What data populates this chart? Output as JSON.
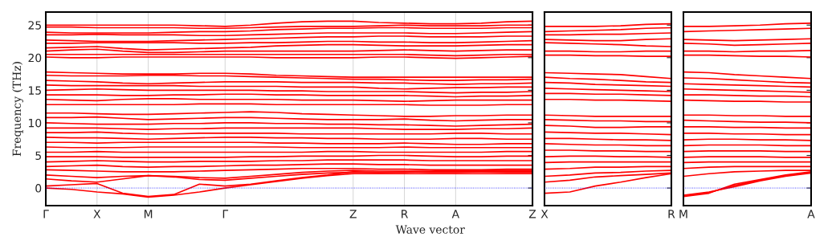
{
  "chart_data": [
    {
      "type": "line",
      "xlabel": "Wave vector",
      "ylabel": "Frequency (THz)",
      "categories": [
        "Γ",
        null,
        "X",
        null,
        "M",
        null,
        null,
        "Γ",
        null,
        null,
        null,
        null,
        "Z",
        null,
        "R",
        null,
        "A",
        null,
        null,
        "Z"
      ],
      "ylim": [
        -2.7,
        27
      ],
      "yticks": [
        0,
        5,
        10,
        15,
        20,
        25
      ],
      "grid": "x",
      "ref_lines": [
        {
          "axis": "y",
          "value": 0,
          "color": "#0000ff",
          "line_style": "dotted"
        }
      ],
      "series": [
        {
          "color": "#ff0000",
          "values": [
            25,
            25,
            25,
            25,
            25,
            25,
            24.9,
            24.8,
            25,
            25.3,
            25.5,
            25.6,
            25.6,
            25.4,
            25.3,
            25.2,
            25.2,
            25.3,
            25.5,
            25.6
          ]
        },
        {
          "color": "#ff0000",
          "values": [
            24.7,
            24.7,
            24.6,
            24.6,
            24.6,
            24.6,
            24.5,
            24.5,
            24.6,
            24.7,
            24.8,
            24.8,
            24.8,
            24.9,
            25,
            24.9,
            24.9,
            24.9,
            25,
            25
          ]
        },
        {
          "color": "#ff0000",
          "values": [
            23.9,
            23.8,
            23.8,
            23.8,
            23.8,
            23.9,
            24,
            24,
            24.1,
            24.3,
            24.4,
            24.5,
            24.5,
            24.6,
            24.6,
            24.5,
            24.5,
            24.5,
            24.6,
            24.6
          ]
        },
        {
          "color": "#ff0000",
          "values": [
            23.5,
            23.5,
            23.6,
            23.5,
            23.5,
            23.5,
            23.4,
            23.4,
            23.5,
            23.6,
            23.7,
            23.8,
            23.8,
            23.8,
            23.8,
            23.7,
            23.7,
            23.8,
            23.9,
            24
          ]
        },
        {
          "color": "#ff0000",
          "values": [
            22.7,
            22.6,
            22.5,
            22.5,
            22.5,
            22.6,
            22.7,
            22.8,
            22.9,
            23,
            23.1,
            23.2,
            23.2,
            23.3,
            23.3,
            23.2,
            23.2,
            23.2,
            23.3,
            23.3
          ]
        },
        {
          "color": "#ff0000",
          "values": [
            22.2,
            22.2,
            22.3,
            22.3,
            22.3,
            22.3,
            22.2,
            22.2,
            22.3,
            22.3,
            22.4,
            22.5,
            22.5,
            22.4,
            22.4,
            22.3,
            22.3,
            22.4,
            22.5,
            22.6
          ]
        },
        {
          "color": "#ff0000",
          "values": [
            21.5,
            21.6,
            21.7,
            21.4,
            21.2,
            21.3,
            21.4,
            21.5,
            21.6,
            21.8,
            21.9,
            22,
            22,
            21.9,
            21.8,
            21.8,
            21.8,
            21.9,
            22,
            22
          ]
        },
        {
          "color": "#ff0000",
          "values": [
            21,
            21.2,
            21.3,
            21,
            20.8,
            20.8,
            20.9,
            21,
            21,
            21,
            21,
            21,
            21,
            21.1,
            21.2,
            21.1,
            21,
            21.1,
            21.2,
            21.2
          ]
        },
        {
          "color": "#ff0000",
          "values": [
            20.5,
            20.5,
            20.5,
            20.5,
            20.5,
            20.5,
            20.5,
            20.5,
            20.5,
            20.5,
            20.5,
            20.5,
            20.5,
            20.5,
            20.5,
            20.4,
            20.3,
            20.4,
            20.5,
            20.5
          ]
        },
        {
          "color": "#ff0000",
          "values": [
            20.1,
            20,
            20,
            20.1,
            20.1,
            20.1,
            20.1,
            20.1,
            20.1,
            20,
            20,
            20,
            20,
            20.1,
            20.1,
            20,
            19.9,
            20,
            20.1,
            20.2
          ]
        },
        {
          "color": "#ff0000",
          "values": [
            17.8,
            17.7,
            17.6,
            17.5,
            17.5,
            17.5,
            17.6,
            17.6,
            17.5,
            17.3,
            17.2,
            17.1,
            17,
            17,
            17,
            17,
            17,
            17,
            17,
            17
          ]
        },
        {
          "color": "#ff0000",
          "values": [
            17.3,
            17.2,
            17.2,
            17.2,
            17.3,
            17.3,
            17.2,
            17.2,
            17.1,
            17,
            16.9,
            16.8,
            16.7,
            16.7,
            16.6,
            16.5,
            16.5,
            16.6,
            16.6,
            16.7
          ]
        },
        {
          "color": "#ff0000",
          "values": [
            16.5,
            16.4,
            16.3,
            16.1,
            16,
            16.1,
            16.2,
            16.3,
            16.3,
            16.3,
            16.2,
            16.2,
            16.2,
            16.1,
            16.1,
            16,
            15.9,
            16,
            16,
            16.1
          ]
        },
        {
          "color": "#ff0000",
          "values": [
            15.8,
            15.7,
            15.7,
            15.7,
            15.7,
            15.7,
            15.6,
            15.6,
            15.6,
            15.6,
            15.5,
            15.5,
            15.5,
            15.3,
            15.2,
            15.3,
            15.4,
            15.4,
            15.5,
            15.5
          ]
        },
        {
          "color": "#ff0000",
          "values": [
            15,
            15.1,
            15.2,
            15.1,
            15,
            15,
            15,
            15,
            15,
            14.9,
            14.9,
            14.8,
            14.8,
            14.8,
            14.8,
            14.7,
            14.6,
            14.7,
            14.7,
            14.8
          ]
        },
        {
          "color": "#ff0000",
          "values": [
            14.3,
            14.3,
            14.3,
            14.2,
            14.2,
            14.3,
            14.3,
            14.4,
            14.4,
            14.3,
            14.3,
            14.2,
            14.2,
            14.2,
            14.2,
            14.1,
            14,
            14.1,
            14.1,
            14.2
          ]
        },
        {
          "color": "#ff0000",
          "values": [
            13.6,
            13.5,
            13.4,
            13.6,
            13.7,
            13.7,
            13.6,
            13.6,
            13.6,
            13.6,
            13.5,
            13.5,
            13.5,
            13.4,
            13.3,
            13.4,
            13.5,
            13.5,
            13.5,
            13.5
          ]
        },
        {
          "color": "#ff0000",
          "values": [
            12.8,
            12.8,
            12.8,
            12.8,
            12.8,
            12.8,
            12.9,
            12.9,
            12.9,
            12.8,
            12.8,
            12.8,
            12.8,
            12.8,
            12.8,
            12.7,
            12.7,
            12.7,
            12.8,
            12.8
          ]
        },
        {
          "color": "#ff0000",
          "values": [
            11.5,
            11.5,
            11.4,
            11.3,
            11.3,
            11.4,
            11.5,
            11.6,
            11.7,
            11.6,
            11.4,
            11.3,
            11.2,
            11.1,
            11,
            11,
            11.1,
            11.1,
            11.2,
            11.2
          ]
        },
        {
          "color": "#ff0000",
          "values": [
            10.8,
            10.8,
            10.9,
            10.7,
            10.5,
            10.6,
            10.7,
            10.8,
            10.8,
            10.7,
            10.6,
            10.5,
            10.5,
            10.5,
            10.6,
            10.4,
            10.3,
            10.4,
            10.5,
            10.5
          ]
        },
        {
          "color": "#ff0000",
          "values": [
            10,
            9.9,
            9.8,
            9.8,
            9.8,
            9.9,
            9.9,
            10,
            10,
            9.9,
            9.9,
            9.8,
            9.8,
            9.7,
            9.7,
            9.6,
            9.5,
            9.6,
            9.7,
            9.8
          ]
        },
        {
          "color": "#ff0000",
          "values": [
            9.2,
            9.2,
            9.2,
            9.1,
            9,
            9.1,
            9.1,
            9.2,
            9.2,
            9.2,
            9.2,
            9.2,
            9.2,
            9.1,
            9,
            9,
            9,
            9.1,
            9.1,
            9.2
          ]
        },
        {
          "color": "#ff0000",
          "values": [
            8.5,
            8.5,
            8.6,
            8.4,
            8.3,
            8.3,
            8.4,
            8.4,
            8.4,
            8.4,
            8.3,
            8.3,
            8.3,
            8.3,
            8.3,
            8.3,
            8.4,
            8.4,
            8.3,
            8.3
          ]
        },
        {
          "color": "#ff0000",
          "values": [
            7.8,
            7.7,
            7.7,
            7.6,
            7.5,
            7.6,
            7.7,
            7.8,
            7.8,
            7.7,
            7.7,
            7.6,
            7.6,
            7.5,
            7.5,
            7.5,
            7.6,
            7.6,
            7.5,
            7.5
          ]
        },
        {
          "color": "#ff0000",
          "values": [
            7,
            7,
            6.9,
            7,
            7,
            7,
            7,
            7,
            7,
            6.9,
            6.9,
            6.8,
            6.8,
            6.8,
            6.9,
            6.8,
            6.7,
            6.7,
            6.8,
            6.8
          ]
        },
        {
          "color": "#ff0000",
          "values": [
            6.3,
            6.2,
            6.2,
            6.2,
            6.3,
            6.3,
            6.3,
            6.3,
            6.3,
            6.3,
            6.2,
            6.2,
            6.2,
            6.2,
            6.3,
            6.2,
            6.2,
            6.2,
            6.2,
            6.2
          ]
        },
        {
          "color": "#ff0000",
          "values": [
            5.5,
            5.5,
            5.6,
            5.5,
            5.5,
            5.5,
            5.5,
            5.5,
            5.5,
            5.5,
            5.5,
            5.6,
            5.6,
            5.5,
            5.5,
            5.5,
            5.5,
            5.5,
            5.6,
            5.6
          ]
        },
        {
          "color": "#ff0000",
          "values": [
            4.8,
            4.8,
            4.8,
            4.7,
            4.7,
            4.7,
            4.7,
            4.7,
            4.8,
            4.8,
            4.9,
            4.9,
            4.9,
            5,
            5,
            4.9,
            4.8,
            4.8,
            4.9,
            4.9
          ]
        },
        {
          "color": "#ff0000",
          "values": [
            4,
            4.1,
            4.2,
            4.1,
            4,
            4,
            4.1,
            4.1,
            4.1,
            4.2,
            4.2,
            4.3,
            4.3,
            4.3,
            4.3,
            4.2,
            4.2,
            4.2,
            4.2,
            4.2
          ]
        },
        {
          "color": "#ff0000",
          "values": [
            3.3,
            3.4,
            3.5,
            3.3,
            3.2,
            3.3,
            3.3,
            3.4,
            3.5,
            3.5,
            3.6,
            3.7,
            3.7,
            3.6,
            3.6,
            3.5,
            3.5,
            3.5,
            3.5,
            3.5
          ]
        },
        {
          "color": "#ff0000",
          "values": [
            2.8,
            2.7,
            2.6,
            2.5,
            2.5,
            2.5,
            2.6,
            2.7,
            2.8,
            2.9,
            3,
            3,
            3,
            2.9,
            2.9,
            2.8,
            2.8,
            2.8,
            2.9,
            2.9
          ]
        },
        {
          "color": "#ff0000",
          "values": [
            2,
            1.8,
            1.6,
            1.8,
            1.9,
            1.8,
            1.6,
            1.5,
            1.8,
            2.1,
            2.4,
            2.6,
            2.7,
            2.6,
            2.6,
            2.6,
            2.7,
            2.7,
            2.7,
            2.7
          ]
        },
        {
          "color": "#ff0000",
          "values": [
            1.4,
            1.1,
            0.9,
            1.4,
            1.9,
            1.7,
            1.3,
            1.2,
            1.5,
            1.8,
            2.1,
            2.3,
            2.4,
            2.4,
            2.5,
            2.4,
            2.4,
            2.5,
            2.5,
            2.5
          ]
        },
        {
          "color": "#ff0000",
          "values": [
            0.3,
            0.5,
            0.7,
            -0.8,
            -1.3,
            -1,
            0.6,
            0.3,
            0.6,
            1.1,
            1.6,
            2,
            2.5,
            2.4,
            2.4,
            2.5,
            2.5,
            2.5,
            2.4,
            2.4
          ]
        },
        {
          "color": "#ff0000",
          "values": [
            0,
            -0.2,
            -0.6,
            -0.9,
            -1.4,
            -1.1,
            -0.6,
            0,
            0.5,
            1,
            1.5,
            1.9,
            2.2,
            2.2,
            2.2,
            2.2,
            2.2,
            2.2,
            2.2,
            2.2
          ]
        }
      ]
    },
    {
      "type": "line",
      "categories": [
        "X",
        null,
        null,
        null,
        null,
        "R"
      ],
      "ylim": [
        -2.7,
        27
      ],
      "yticks": [
        0,
        5,
        10,
        15,
        20,
        25
      ],
      "tick_labels": "x",
      "ref_lines": [
        {
          "axis": "y",
          "value": 0,
          "color": "#0000ff",
          "line_style": "dotted"
        }
      ],
      "series": [
        {
          "color": "#ff0000",
          "values": [
            24.8,
            24.8,
            24.8,
            24.9,
            25.1,
            25.2
          ]
        },
        {
          "color": "#ff0000",
          "values": [
            24,
            24.1,
            24.2,
            24.3,
            24.5,
            24.6
          ]
        },
        {
          "color": "#ff0000",
          "values": [
            23.5,
            23.5,
            23.6,
            23.6,
            23.7,
            23.8
          ]
        },
        {
          "color": "#ff0000",
          "values": [
            22.8,
            22.7,
            22.6,
            22.6,
            22.8,
            22.9
          ]
        },
        {
          "color": "#ff0000",
          "values": [
            22.3,
            22.2,
            22.1,
            22,
            21.8,
            21.7
          ]
        },
        {
          "color": "#ff0000",
          "values": [
            21,
            21,
            20.9,
            20.9,
            21,
            21
          ]
        },
        {
          "color": "#ff0000",
          "values": [
            20.4,
            20.4,
            20.3,
            20.3,
            20.2,
            20.2
          ]
        },
        {
          "color": "#ff0000",
          "values": [
            17.7,
            17.6,
            17.5,
            17.4,
            17.1,
            16.8
          ]
        },
        {
          "color": "#ff0000",
          "values": [
            17,
            16.8,
            16.7,
            16.5,
            16.3,
            16.2
          ]
        },
        {
          "color": "#ff0000",
          "values": [
            16.2,
            16.1,
            15.9,
            15.8,
            15.7,
            15.6
          ]
        },
        {
          "color": "#ff0000",
          "values": [
            15.3,
            15.2,
            15.1,
            15,
            14.9,
            14.8
          ]
        },
        {
          "color": "#ff0000",
          "values": [
            14.5,
            14.5,
            14.4,
            14.4,
            14.3,
            14.2
          ]
        },
        {
          "color": "#ff0000",
          "values": [
            13.6,
            13.6,
            13.5,
            13.5,
            13.4,
            13.3
          ]
        },
        {
          "color": "#ff0000",
          "values": [
            11.2,
            11.1,
            11,
            11,
            11,
            11
          ]
        },
        {
          "color": "#ff0000",
          "values": [
            10.5,
            10.4,
            10.3,
            10.3,
            10.2,
            10.2
          ]
        },
        {
          "color": "#ff0000",
          "values": [
            9.6,
            9.5,
            9.3,
            9.3,
            9.4,
            9.4
          ]
        },
        {
          "color": "#ff0000",
          "values": [
            8.6,
            8.5,
            8.4,
            8.4,
            8.3,
            8.2
          ]
        },
        {
          "color": "#ff0000",
          "values": [
            7.6,
            7.6,
            7.5,
            7.4,
            7.4,
            7.3
          ]
        },
        {
          "color": "#ff0000",
          "values": [
            6.8,
            6.7,
            6.6,
            6.6,
            6.5,
            6.5
          ]
        },
        {
          "color": "#ff0000",
          "values": [
            5.8,
            5.8,
            5.7,
            5.7,
            5.6,
            5.6
          ]
        },
        {
          "color": "#ff0000",
          "values": [
            4.8,
            4.9,
            4.9,
            4.8,
            4.8,
            4.7
          ]
        },
        {
          "color": "#ff0000",
          "values": [
            3.9,
            4,
            4,
            4,
            4,
            4
          ]
        },
        {
          "color": "#ff0000",
          "values": [
            2.9,
            3,
            3.2,
            3.2,
            3.3,
            3.3
          ]
        },
        {
          "color": "#ff0000",
          "values": [
            1.8,
            2,
            2.3,
            2.4,
            2.6,
            2.7
          ]
        },
        {
          "color": "#ff0000",
          "values": [
            0.9,
            1.2,
            1.7,
            1.9,
            2.1,
            2.3
          ]
        },
        {
          "color": "#ff0000",
          "values": [
            -0.8,
            -0.6,
            0.3,
            0.9,
            1.6,
            2.2
          ]
        }
      ]
    },
    {
      "type": "line",
      "categories": [
        "M",
        null,
        null,
        null,
        null,
        "A"
      ],
      "ylim": [
        -2.7,
        27
      ],
      "yticks": [
        0,
        5,
        10,
        15,
        20,
        25
      ],
      "tick_labels": "x",
      "ref_lines": [
        {
          "axis": "y",
          "value": 0,
          "color": "#0000ff",
          "line_style": "dotted"
        }
      ],
      "series": [
        {
          "color": "#ff0000",
          "values": [
            24.8,
            24.8,
            24.9,
            25,
            25.2,
            25.3
          ]
        },
        {
          "color": "#ff0000",
          "values": [
            24,
            24.1,
            24.2,
            24.3,
            24.4,
            24.5
          ]
        },
        {
          "color": "#ff0000",
          "values": [
            22.8,
            22.7,
            22.6,
            22.7,
            22.8,
            22.9
          ]
        },
        {
          "color": "#ff0000",
          "values": [
            22.2,
            22.1,
            21.9,
            22,
            22.1,
            22.2
          ]
        },
        {
          "color": "#ff0000",
          "values": [
            21,
            21,
            20.9,
            21,
            21,
            21.1
          ]
        },
        {
          "color": "#ff0000",
          "values": [
            20.4,
            20.4,
            20.3,
            20.2,
            20.2,
            20.1
          ]
        },
        {
          "color": "#ff0000",
          "values": [
            17.8,
            17.7,
            17.4,
            17.2,
            17,
            16.8
          ]
        },
        {
          "color": "#ff0000",
          "values": [
            16.9,
            16.8,
            16.6,
            16.4,
            16.2,
            16.1
          ]
        },
        {
          "color": "#ff0000",
          "values": [
            16,
            15.9,
            15.8,
            15.7,
            15.6,
            15.5
          ]
        },
        {
          "color": "#ff0000",
          "values": [
            15.2,
            15.1,
            15,
            14.9,
            14.8,
            14.7
          ]
        },
        {
          "color": "#ff0000",
          "values": [
            14.3,
            14.3,
            14.2,
            14.1,
            14.1,
            14
          ]
        },
        {
          "color": "#ff0000",
          "values": [
            13.5,
            13.4,
            13.3,
            13.3,
            13.2,
            13.2
          ]
        },
        {
          "color": "#ff0000",
          "values": [
            11.2,
            11.2,
            11.1,
            11.1,
            11,
            11
          ]
        },
        {
          "color": "#ff0000",
          "values": [
            10.4,
            10.3,
            10.2,
            10.1,
            10.1,
            10
          ]
        },
        {
          "color": "#ff0000",
          "values": [
            9.4,
            9.4,
            9.3,
            9.3,
            9.2,
            9.2
          ]
        },
        {
          "color": "#ff0000",
          "values": [
            8.4,
            8.4,
            8.3,
            8.3,
            8.2,
            8.2
          ]
        },
        {
          "color": "#ff0000",
          "values": [
            7.4,
            7.5,
            7.5,
            7.4,
            7.4,
            7.3
          ]
        },
        {
          "color": "#ff0000",
          "values": [
            6.5,
            6.6,
            6.6,
            6.6,
            6.5,
            6.5
          ]
        },
        {
          "color": "#ff0000",
          "values": [
            5.6,
            5.7,
            5.7,
            5.7,
            5.6,
            5.6
          ]
        },
        {
          "color": "#ff0000",
          "values": [
            4.7,
            4.8,
            4.8,
            4.8,
            4.7,
            4.7
          ]
        },
        {
          "color": "#ff0000",
          "values": [
            3.9,
            4,
            4,
            4,
            4,
            4
          ]
        },
        {
          "color": "#ff0000",
          "values": [
            3,
            3.2,
            3.3,
            3.3,
            3.3,
            3.3
          ]
        },
        {
          "color": "#ff0000",
          "values": [
            1.8,
            2.2,
            2.5,
            2.6,
            2.7,
            2.7
          ]
        },
        {
          "color": "#ff0000",
          "values": [
            -1.3,
            -0.8,
            0.6,
            1.3,
            2,
            2.5
          ]
        },
        {
          "color": "#ff0000",
          "values": [
            -1.2,
            -0.7,
            0.4,
            1.2,
            1.9,
            2.4
          ]
        },
        {
          "color": "#ff0000",
          "values": [
            -1.1,
            -0.6,
            0.2,
            1.1,
            1.8,
            2.3
          ]
        }
      ]
    }
  ]
}
